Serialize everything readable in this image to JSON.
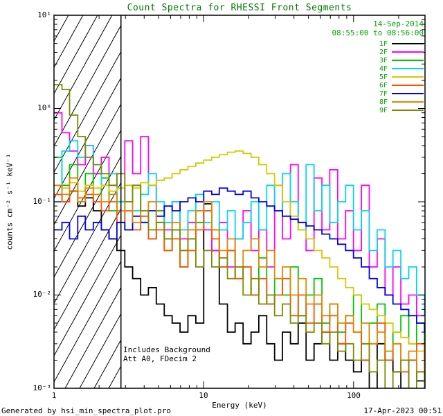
{
  "title": "Count Spectra for RHESSI Front Segments",
  "header": {
    "date": "14-Sep-2014",
    "time_range": "08:55:00 to 08:56:00"
  },
  "annotations": {
    "background": "Includes Background",
    "attenuator": "Att A0, FDecim 2"
  },
  "footer": {
    "generator": "Generated by hsi_min_spectra_plot.pro",
    "timestamp": "17-Apr-2023 00:51"
  },
  "axes": {
    "xlabel": "Energy (keV)",
    "ylabel": "counts cm⁻² s⁻¹ keV⁻¹",
    "x_ticks": [
      "1",
      "10",
      "100"
    ],
    "y_ticks": [
      "10¹",
      "10⁰",
      "10⁻¹",
      "10⁻²",
      "10⁻³"
    ]
  },
  "colors": {
    "title_green": "#007700",
    "annotation_green": "#00a400",
    "axis_black": "#000000"
  },
  "chart_data": {
    "type": "line",
    "subtype": "step-histogram",
    "title": "Count Spectra for RHESSI Front Segments",
    "xlabel": "Energy (keV)",
    "ylabel": "counts cm^-2 s^-1 keV^-1",
    "xlim": [
      1,
      300
    ],
    "ylim": [
      0.001,
      10
    ],
    "xlog": true,
    "ylog": true,
    "grid": false,
    "legend_position": "upper right",
    "hatch_region": {
      "x_min": 1,
      "x_max": 2.8,
      "style": "diagonal-hatch"
    },
    "x": [
      1.0,
      1.13,
      1.27,
      1.44,
      1.62,
      1.83,
      2.07,
      2.33,
      2.63,
      2.97,
      3.35,
      3.79,
      4.27,
      4.82,
      5.45,
      6.15,
      6.94,
      7.84,
      8.85,
      9.99,
      11.3,
      12.7,
      14.4,
      16.2,
      18.3,
      20.7,
      23.3,
      26.3,
      29.7,
      33.5,
      37.9,
      42.7,
      48.2,
      54.5,
      61.5,
      69.4,
      78.4,
      88.5,
      99.9,
      112.8,
      127.4,
      143.8,
      162.4,
      183.3,
      207.0,
      233.7,
      263.8,
      297.9
    ],
    "series": [
      {
        "name": "1F",
        "color": "#000000",
        "values": [
          0.12,
          0.1,
          0.13,
          0.09,
          0.11,
          0.08,
          0.05,
          0.04,
          0.03,
          0.02,
          0.015,
          0.01,
          0.012,
          0.008,
          0.006,
          0.005,
          0.004,
          0.006,
          0.005,
          0.095,
          0.03,
          0.008,
          0.004,
          0.005,
          0.003,
          0.004,
          0.006,
          0.003,
          0.002,
          0.004,
          0.003,
          0.005,
          0.002,
          0.003,
          0.004,
          0.002,
          0.003,
          0.002,
          0.0015,
          0.002,
          0.001,
          0.003,
          0.002,
          0.0015,
          0.001,
          0.002,
          0.0012,
          0.005
        ]
      },
      {
        "name": "2F",
        "color": "#ff00ff",
        "values": [
          0.9,
          0.55,
          0.35,
          0.25,
          0.4,
          0.2,
          0.3,
          0.15,
          0.1,
          0.45,
          0.2,
          0.5,
          0.15,
          0.08,
          0.05,
          0.1,
          0.04,
          0.06,
          0.08,
          0.05,
          0.03,
          0.06,
          0.02,
          0.04,
          0.08,
          0.03,
          0.05,
          0.02,
          0.15,
          0.04,
          0.25,
          0.06,
          0.03,
          0.18,
          0.05,
          0.22,
          0.04,
          0.08,
          0.03,
          0.15,
          0.02,
          0.04,
          0.01,
          0.02,
          0.008,
          0.01,
          0.006,
          0.006
        ]
      },
      {
        "name": "3F",
        "color": "#00c400",
        "values": [
          0.3,
          0.15,
          0.25,
          0.1,
          0.2,
          0.12,
          0.18,
          0.08,
          0.1,
          0.05,
          0.15,
          0.06,
          0.04,
          0.08,
          0.03,
          0.05,
          0.02,
          0.04,
          0.06,
          0.08,
          0.05,
          0.02,
          0.03,
          0.015,
          0.02,
          0.01,
          0.025,
          0.008,
          0.015,
          0.01,
          0.02,
          0.006,
          0.01,
          0.015,
          0.005,
          0.008,
          0.004,
          0.006,
          0.01,
          0.003,
          0.005,
          0.008,
          0.002,
          0.004,
          0.006,
          0.003,
          0.005,
          0.002
        ]
      },
      {
        "name": "4F",
        "color": "#00d8e8",
        "values": [
          0.1,
          0.35,
          0.45,
          0.3,
          0.4,
          0.25,
          0.15,
          0.2,
          0.1,
          0.15,
          0.08,
          0.12,
          0.2,
          0.1,
          0.06,
          0.1,
          0.05,
          0.08,
          0.12,
          0.06,
          0.1,
          0.05,
          0.08,
          0.04,
          0.06,
          0.1,
          0.05,
          0.15,
          0.08,
          0.2,
          0.1,
          0.05,
          0.25,
          0.08,
          0.15,
          0.06,
          0.1,
          0.15,
          0.05,
          0.08,
          0.03,
          0.05,
          0.02,
          0.03,
          0.015,
          0.02,
          0.01,
          0.006
        ]
      },
      {
        "name": "5F",
        "color": "#d8c800",
        "values": [
          0.15,
          0.14,
          0.16,
          0.13,
          0.15,
          0.14,
          0.15,
          0.13,
          0.14,
          0.15,
          0.14,
          0.16,
          0.15,
          0.17,
          0.18,
          0.2,
          0.22,
          0.24,
          0.26,
          0.28,
          0.3,
          0.32,
          0.34,
          0.35,
          0.33,
          0.3,
          0.25,
          0.2,
          0.15,
          0.1,
          0.07,
          0.05,
          0.04,
          0.03,
          0.025,
          0.02,
          0.015,
          0.012,
          0.01,
          0.008,
          0.007,
          0.006,
          0.005,
          0.004,
          0.0035,
          0.003,
          0.0025,
          0.002
        ]
      },
      {
        "name": "6F",
        "color": "#ff5000",
        "values": [
          0.12,
          0.1,
          0.13,
          0.11,
          0.12,
          0.1,
          0.08,
          0.1,
          0.06,
          0.08,
          0.05,
          0.07,
          0.04,
          0.05,
          0.03,
          0.04,
          0.02,
          0.03,
          0.05,
          0.08,
          0.04,
          0.02,
          0.03,
          0.015,
          0.02,
          0.01,
          0.015,
          0.008,
          0.01,
          0.015,
          0.006,
          0.01,
          0.005,
          0.008,
          0.004,
          0.006,
          0.003,
          0.005,
          0.004,
          0.002,
          0.003,
          0.005,
          0.002,
          0.003,
          0.0015,
          0.002,
          0.003,
          0.0015
        ]
      },
      {
        "name": "7F",
        "color": "#0000ee",
        "values": [
          0.05,
          0.06,
          0.04,
          0.07,
          0.05,
          0.06,
          0.05,
          0.04,
          0.06,
          0.05,
          0.07,
          0.06,
          0.08,
          0.07,
          0.09,
          0.08,
          0.1,
          0.11,
          0.1,
          0.13,
          0.12,
          0.14,
          0.13,
          0.12,
          0.13,
          0.11,
          0.1,
          0.09,
          0.08,
          0.07,
          0.065,
          0.06,
          0.055,
          0.05,
          0.045,
          0.04,
          0.035,
          0.03,
          0.025,
          0.02,
          0.015,
          0.012,
          0.01,
          0.008,
          0.007,
          0.006,
          0.005,
          0.004
        ]
      },
      {
        "name": "8F",
        "color": "#dd8800",
        "values": [
          0.15,
          0.12,
          0.18,
          0.1,
          0.14,
          0.12,
          0.1,
          0.12,
          0.08,
          0.1,
          0.06,
          0.08,
          0.1,
          0.06,
          0.04,
          0.06,
          0.03,
          0.05,
          0.08,
          0.1,
          0.05,
          0.03,
          0.04,
          0.02,
          0.03,
          0.04,
          0.02,
          0.03,
          0.015,
          0.02,
          0.01,
          0.015,
          0.008,
          0.01,
          0.006,
          0.008,
          0.005,
          0.006,
          0.004,
          0.005,
          0.003,
          0.004,
          0.0025,
          0.003,
          0.002,
          0.0025,
          0.0015,
          0.002
        ]
      },
      {
        "name": "9F",
        "color": "#7a8a00",
        "values": [
          1.8,
          1.6,
          0.85,
          0.5,
          0.3,
          0.25,
          0.2,
          0.15,
          0.2,
          0.1,
          0.15,
          0.08,
          0.05,
          0.06,
          0.04,
          0.05,
          0.03,
          0.04,
          0.02,
          0.03,
          0.02,
          0.025,
          0.015,
          0.02,
          0.01,
          0.015,
          0.008,
          0.01,
          0.006,
          0.008,
          0.005,
          0.006,
          0.004,
          0.005,
          0.003,
          0.004,
          0.0025,
          0.003,
          0.002,
          0.003,
          0.0015,
          0.002,
          0.001,
          0.0015,
          0.002,
          0.001,
          0.0015,
          0.001
        ]
      }
    ]
  }
}
